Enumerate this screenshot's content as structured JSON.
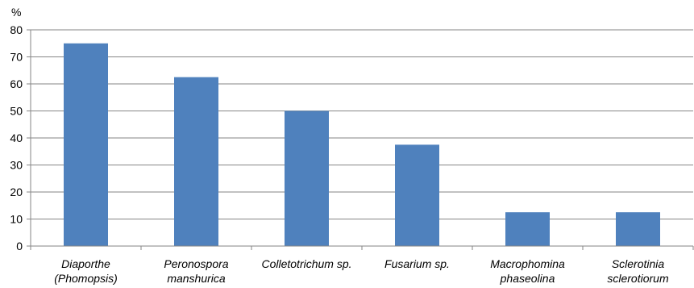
{
  "chart_data": {
    "type": "bar",
    "unit_label": "%",
    "categories": [
      [
        "Diaporthe",
        "(Phomopsis)"
      ],
      [
        "Peronospora",
        "manshurica"
      ],
      [
        "Colletotrichum sp."
      ],
      [
        "Fusarium sp."
      ],
      [
        "Macrophomina",
        "phaseolina"
      ],
      [
        "Sclerotinia",
        "sclerotiorum"
      ]
    ],
    "values": [
      75,
      62.5,
      50,
      37.5,
      12.5,
      12.5
    ],
    "yticks": [
      "0",
      "10",
      "20",
      "30",
      "40",
      "50",
      "60",
      "70",
      "80"
    ],
    "ylim": [
      0,
      80
    ],
    "grid": true,
    "colors": {
      "bar": "#4f81bd",
      "grid": "#868686",
      "axis": "#868686"
    }
  }
}
